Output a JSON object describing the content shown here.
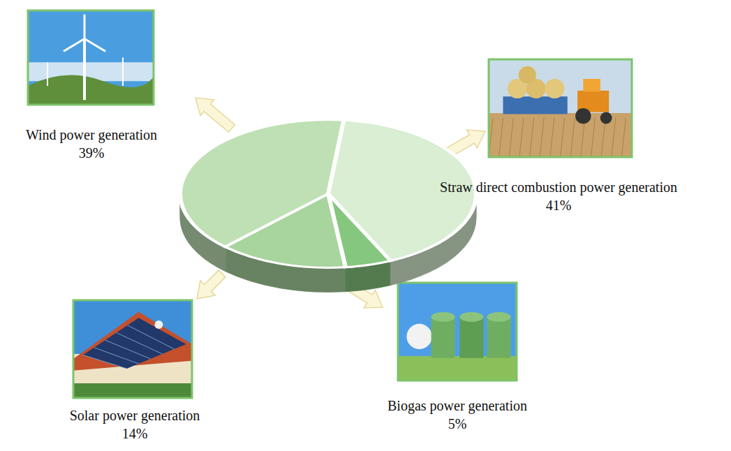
{
  "chart_data": {
    "type": "pie",
    "categories": [
      "Straw direct combustion power generation",
      "Biogas power generation",
      "Solar power generation",
      "Wind power generation"
    ],
    "values": [
      41,
      5,
      14,
      39
    ],
    "value_labels": [
      "41%",
      "5%",
      "14%",
      "39%"
    ],
    "colors": [
      "#d9eed3",
      "#86c77f",
      "#a8d49e",
      "#bfe0b4"
    ],
    "data_labels": true
  }
}
